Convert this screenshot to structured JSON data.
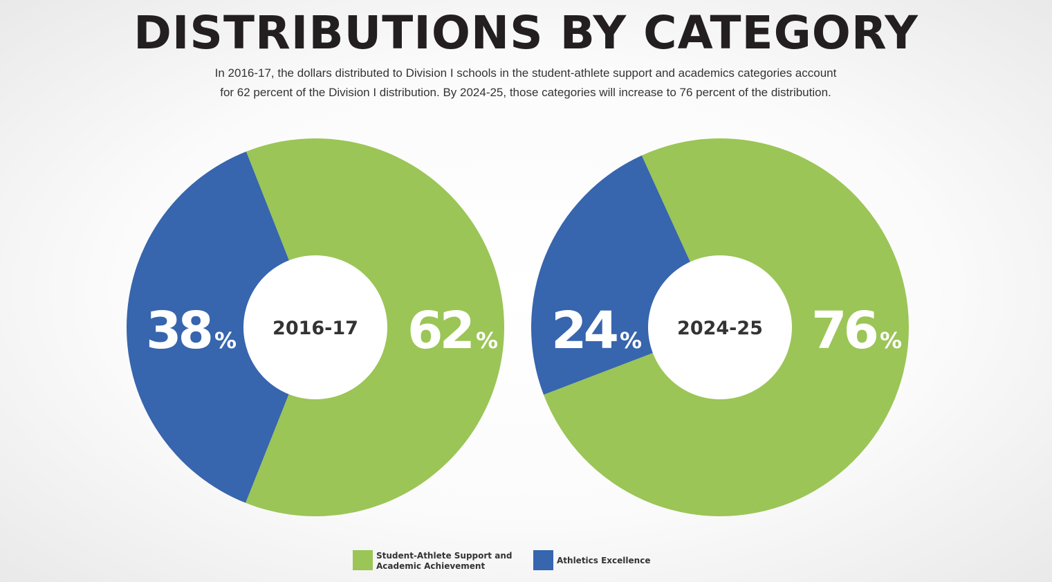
{
  "header": {
    "title": "DISTRIBUTIONS BY CATEGORY",
    "subtitle_line1": "In 2016-17, the dollars distributed to Division I schools in the student-athlete support and academics categories account",
    "subtitle_line2": "for 62 percent of the Division I distribution. By 2024-25, those categories will increase to 76 percent of the distribution."
  },
  "chart_data": [
    {
      "type": "pie",
      "title": "2016-17",
      "categories": [
        "Student-Athlete Support and Academic Achievement",
        "Athletics Excellence"
      ],
      "values": [
        62,
        38
      ],
      "value_labels": [
        "62",
        "38"
      ],
      "unit": "%",
      "colors": [
        "#9bc556",
        "#3765ae"
      ]
    },
    {
      "type": "pie",
      "title": "2024-25",
      "categories": [
        "Student-Athlete Support and Academic Achievement",
        "Athletics Excellence"
      ],
      "values": [
        76,
        24
      ],
      "value_labels": [
        "76",
        "24"
      ],
      "unit": "%",
      "colors": [
        "#9bc556",
        "#3765ae"
      ]
    }
  ],
  "legend": {
    "items": [
      {
        "label_line1": "Student-Athlete Support and",
        "label_line2": "Academic Achievement",
        "color": "#9bc556"
      },
      {
        "label_line1": "Athletics Excellence",
        "label_line2": "",
        "color": "#3765ae"
      }
    ]
  }
}
